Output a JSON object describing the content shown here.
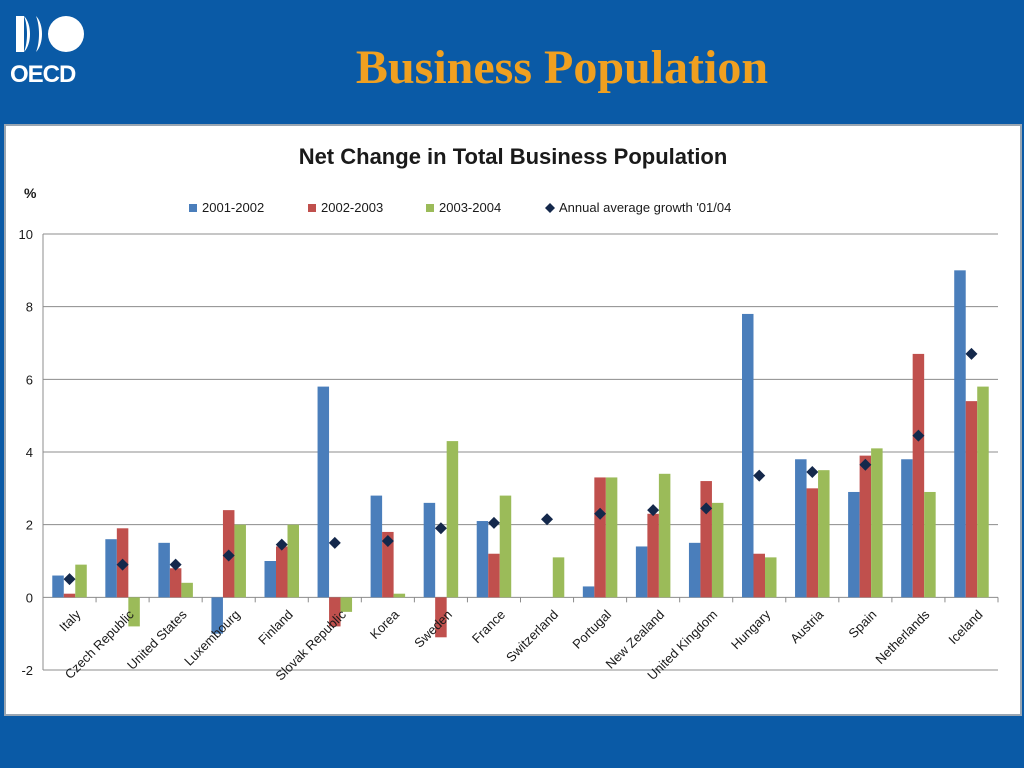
{
  "header": {
    "logo_text": "OECD",
    "title": "Business Population",
    "title_color": "#f0a020",
    "background_color": "#0a5aa6"
  },
  "chart_data": {
    "type": "bar",
    "title": "Net Change in Total Business Population",
    "ylabel": "%",
    "xlabel": "",
    "ylim": [
      -2,
      10
    ],
    "yticks": [
      -2,
      0,
      2,
      4,
      6,
      8,
      10
    ],
    "grid": "horizontal",
    "legend_position": "top",
    "categories": [
      "Italy",
      "Czech Republic",
      "United States",
      "Luxembourg",
      "Finland",
      "Slovak Republic",
      "Korea",
      "Sweden",
      "France",
      "Switzerland",
      "Portugal",
      "New Zealand",
      "United Kingdom",
      "Hungary",
      "Austria",
      "Spain",
      "Netherlands",
      "Iceland"
    ],
    "series": [
      {
        "name": "2001-2002",
        "kind": "bar",
        "color": "#4a7ebb",
        "values": [
          0.6,
          1.6,
          1.5,
          -1.0,
          1.0,
          5.8,
          2.8,
          2.6,
          2.1,
          null,
          0.3,
          1.4,
          1.5,
          7.8,
          3.8,
          2.9,
          3.8,
          9.0
        ]
      },
      {
        "name": "2002-2003",
        "kind": "bar",
        "color": "#c0504d",
        "values": [
          0.1,
          1.9,
          0.8,
          2.4,
          1.4,
          -0.8,
          1.8,
          -1.1,
          1.2,
          null,
          3.3,
          2.3,
          3.2,
          1.2,
          3.0,
          3.9,
          6.7,
          5.4
        ]
      },
      {
        "name": "2003-2004",
        "kind": "bar",
        "color": "#9bbb59",
        "values": [
          0.9,
          -0.8,
          0.4,
          2.0,
          2.0,
          -0.4,
          0.1,
          4.3,
          2.8,
          1.1,
          3.3,
          3.4,
          2.6,
          1.1,
          3.5,
          4.1,
          2.9,
          5.8
        ]
      },
      {
        "name": "Annual average growth '01/04",
        "kind": "marker",
        "color": "#14284b",
        "values": [
          0.5,
          0.9,
          0.9,
          1.15,
          1.45,
          1.5,
          1.55,
          1.9,
          2.05,
          2.15,
          2.3,
          2.4,
          2.45,
          3.35,
          3.45,
          3.65,
          4.45,
          6.7
        ]
      }
    ]
  }
}
